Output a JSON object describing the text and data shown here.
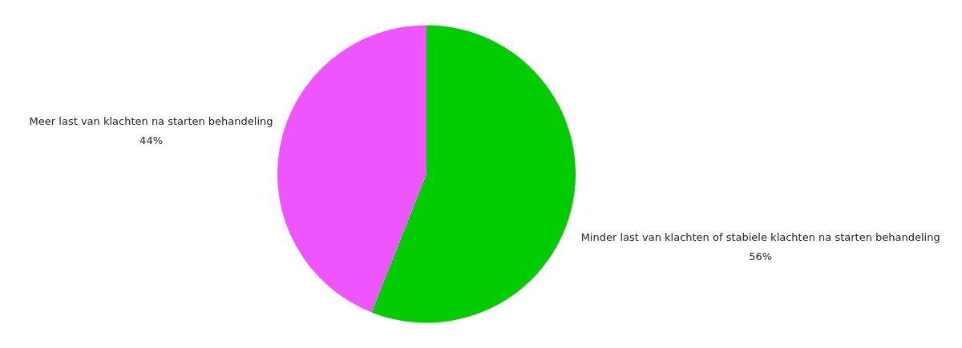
{
  "chart_data": {
    "type": "pie",
    "categories": [
      "Minder last van klachten of stabiele klachten na starten behandeling",
      "Meer last van klachten na starten behandeling"
    ],
    "values": [
      56,
      44
    ],
    "colors": [
      "#00cc00",
      "#ee55ff"
    ],
    "value_labels": [
      "56%",
      "44%"
    ]
  }
}
